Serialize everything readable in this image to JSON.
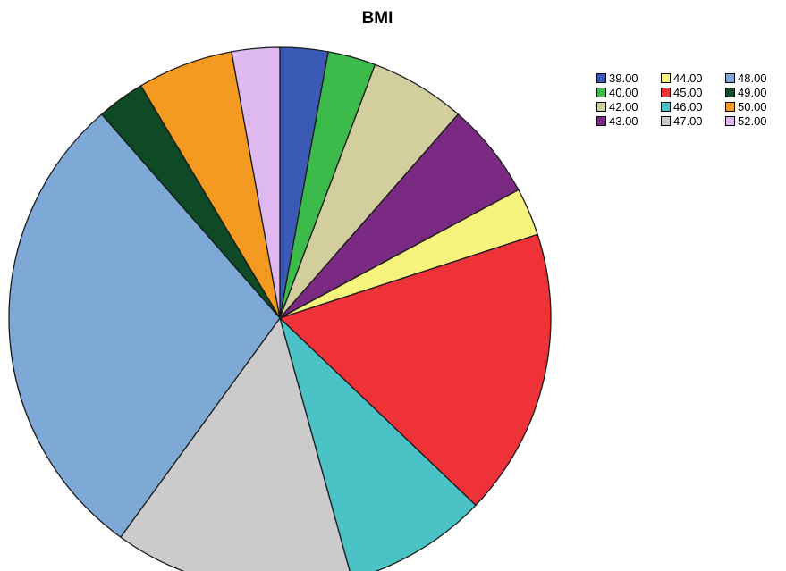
{
  "chart_data": {
    "type": "pie",
    "title": "BMI",
    "legend_position": "top-right",
    "slices": [
      {
        "label": "39.00",
        "value": 1,
        "color": "#3a5ab5"
      },
      {
        "label": "40.00",
        "value": 1,
        "color": "#3cba4a"
      },
      {
        "label": "42.00",
        "value": 2,
        "color": "#d3ce9d"
      },
      {
        "label": "43.00",
        "value": 2,
        "color": "#7a2a82"
      },
      {
        "label": "44.00",
        "value": 1,
        "color": "#f6f47c"
      },
      {
        "label": "45.00",
        "value": 6,
        "color": "#ee3238"
      },
      {
        "label": "46.00",
        "value": 3,
        "color": "#4bc2c6"
      },
      {
        "label": "47.00",
        "value": 5,
        "color": "#cbcbcb"
      },
      {
        "label": "48.00",
        "value": 10,
        "color": "#7ea9d6"
      },
      {
        "label": "49.00",
        "value": 1,
        "color": "#0d4a25"
      },
      {
        "label": "50.00",
        "value": 2,
        "color": "#f59a21"
      },
      {
        "label": "52.00",
        "value": 1,
        "color": "#deb9f0"
      }
    ]
  }
}
